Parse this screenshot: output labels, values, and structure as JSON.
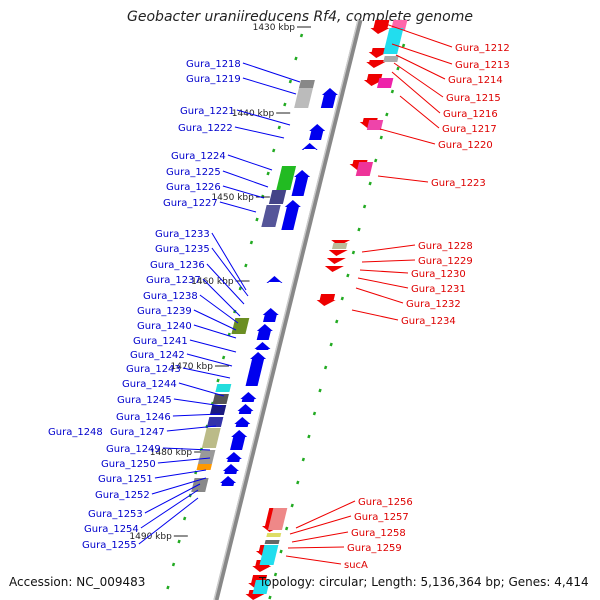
{
  "title": "Geobacter uraniireducens Rf4, complete genome",
  "footer": {
    "accession": "Accession: NC_009483",
    "summary": "Topology: circular; Length: 5,136,364 bp; Genes: 4,414"
  },
  "scale_labels": [
    "1430 kbp",
    "1440 kbp",
    "1450 kbp",
    "1460 kbp",
    "1470 kbp",
    "1480 kbp",
    "1490 kbp"
  ],
  "left_labels": [
    "Gura_1218",
    "Gura_1219",
    "Gura_1221",
    "Gura_1222",
    "Gura_1224",
    "Gura_1225",
    "Gura_1226",
    "Gura_1227",
    "Gura_1233",
    "Gura_1235",
    "Gura_1236",
    "Gura_1237",
    "Gura_1238",
    "Gura_1239",
    "Gura_1240",
    "Gura_1241",
    "Gura_1242",
    "Gura_1243",
    "Gura_1244",
    "Gura_1245",
    "Gura_1246",
    "Gura_1247",
    "Gura_1248",
    "Gura_1249",
    "Gura_1250",
    "Gura_1251",
    "Gura_1252",
    "Gura_1253",
    "Gura_1254",
    "Gura_1255"
  ],
  "right_labels": [
    "Gura_1212",
    "Gura_1213",
    "Gura_1214",
    "Gura_1215",
    "Gura_1216",
    "Gura_1217",
    "Gura_1220",
    "Gura_1223",
    "Gura_1228",
    "Gura_1229",
    "Gura_1230",
    "Gura_1231",
    "Gura_1232",
    "Gura_1234",
    "Gura_1256",
    "Gura_1257",
    "Gura_1258",
    "Gura_1259",
    "sucA"
  ],
  "colors": {
    "forward": "#0000ee",
    "reverse": "#ee0000",
    "left_label": "#0000cc",
    "right_label": "#dd0000",
    "backbone": "#999999",
    "tick": "#22aa22"
  }
}
